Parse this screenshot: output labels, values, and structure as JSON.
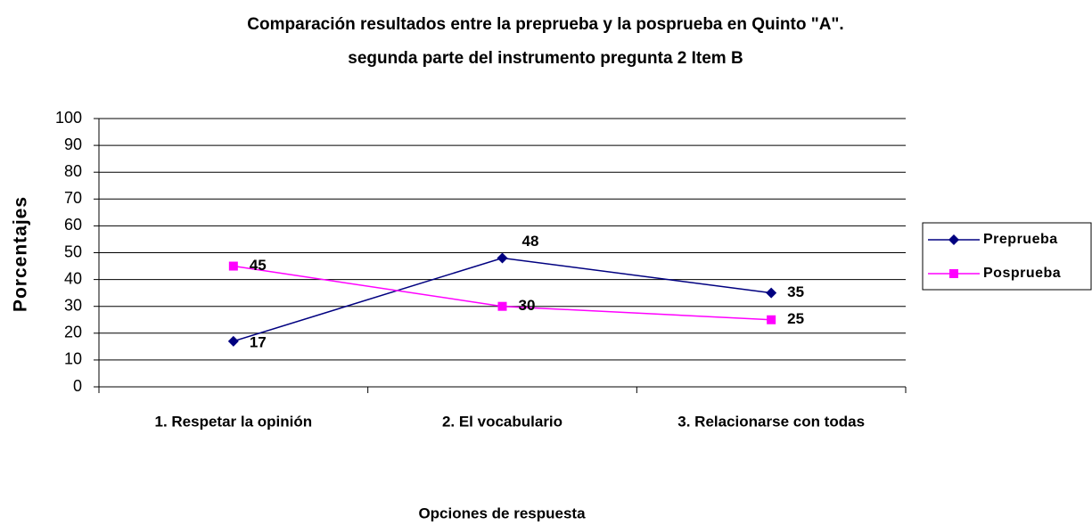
{
  "chart_data": {
    "type": "line",
    "title": [
      "Comparación resultados entre la preprueba y la posprueba en Quinto \"A\".",
      "segunda parte del instrumento pregunta 2 Item B"
    ],
    "x_label": "Opciones de respuesta",
    "y_label": "Porcentajes",
    "categories": [
      "1. Respetar la opinión",
      "2. El vocabulario",
      "3. Relacionarse con todas"
    ],
    "series": [
      {
        "name": "Preprueba",
        "color": "#000080",
        "marker": "diamond",
        "values": [
          17,
          48,
          35
        ]
      },
      {
        "name": "Posprueba",
        "color": "#ff00ff",
        "marker": "square",
        "values": [
          45,
          30,
          25
        ]
      }
    ],
    "ylim": [
      0,
      100
    ],
    "yticks": [
      0,
      10,
      20,
      30,
      40,
      50,
      60,
      70,
      80,
      90,
      100
    ],
    "grid": true,
    "legend": "right"
  }
}
